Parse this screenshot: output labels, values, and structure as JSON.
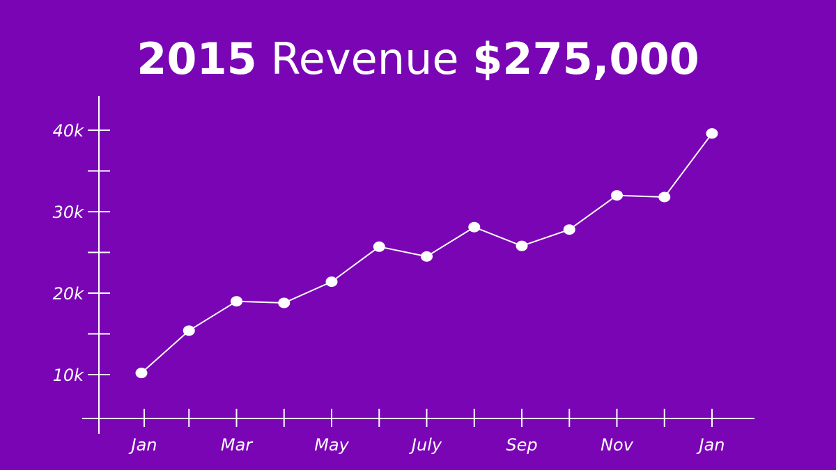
{
  "title": {
    "year": "2015",
    "label": "Revenue",
    "amount": "$275,000"
  },
  "colors": {
    "background": "#7a05b5",
    "foreground": "#ffffff"
  },
  "chart_data": {
    "type": "line",
    "title": "2015 Revenue $275,000",
    "xlabel": "",
    "ylabel": "",
    "x_tick_labels": [
      "Jan",
      "",
      "Mar",
      "",
      "May",
      "",
      "July",
      "",
      "Sep",
      "",
      "Nov",
      "",
      "Jan"
    ],
    "y_tick_labels": [
      "10k",
      "20k",
      "30k",
      "40k"
    ],
    "y_ticks": [
      10000,
      20000,
      30000,
      40000
    ],
    "y_minor_ticks": [
      15000,
      25000,
      35000
    ],
    "ylim": [
      5000,
      44000
    ],
    "grid": false,
    "legend": "none",
    "series": [
      {
        "values": [
          10200,
          15400,
          19000,
          18800,
          21400,
          25700,
          24500,
          28100,
          25800,
          27800,
          32000,
          31800,
          39600
        ]
      }
    ]
  }
}
